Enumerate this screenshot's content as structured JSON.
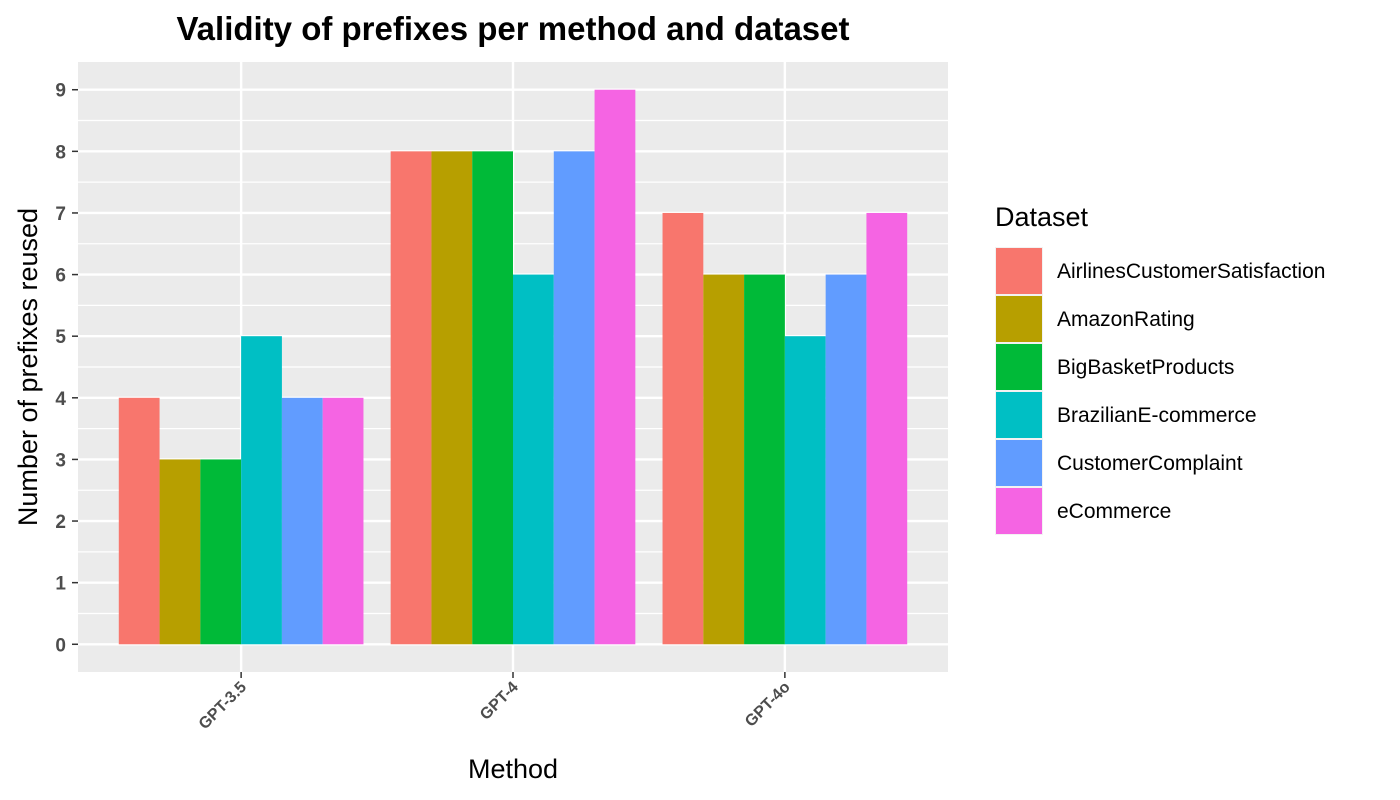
{
  "chart_data": {
    "type": "bar",
    "title": "Validity of prefixes per method and dataset",
    "xlabel": "Method",
    "ylabel": "Number of prefixes reused",
    "categories": [
      "GPT-3.5",
      "GPT-4",
      "GPT-4o"
    ],
    "series": [
      {
        "name": "AirlinesCustomerSatisfaction",
        "color": "#F8766D",
        "values": [
          4,
          8,
          7
        ]
      },
      {
        "name": "AmazonRating",
        "color": "#B79F00",
        "values": [
          3,
          8,
          6
        ]
      },
      {
        "name": "BigBasketProducts",
        "color": "#00BA38",
        "values": [
          3,
          8,
          6
        ]
      },
      {
        "name": "BrazilianE-commerce",
        "color": "#00BFC4",
        "values": [
          5,
          6,
          5
        ]
      },
      {
        "name": "CustomerComplaint",
        "color": "#619CFF",
        "values": [
          4,
          8,
          6
        ]
      },
      {
        "name": "eCommerce",
        "color": "#F564E3",
        "values": [
          4,
          9,
          7
        ]
      }
    ],
    "yticks": [
      "0",
      "1",
      "2",
      "3",
      "4",
      "5",
      "6",
      "7",
      "8",
      "9"
    ],
    "ylim": [
      -0.45,
      9.45
    ],
    "grid": true,
    "panel_background": "#EBEBEB",
    "legend": {
      "title": "Dataset",
      "position": "right"
    }
  }
}
